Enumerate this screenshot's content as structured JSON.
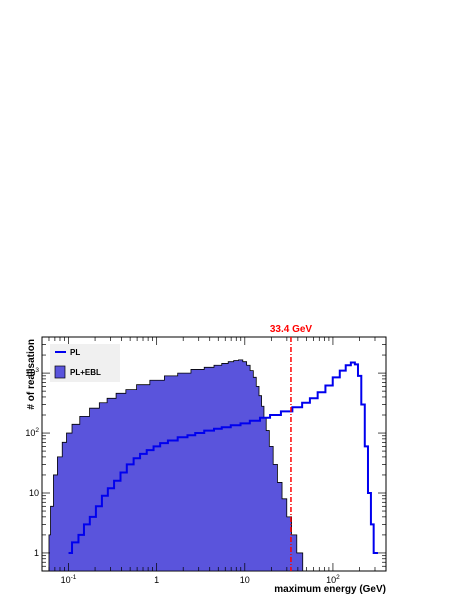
{
  "chart_data": {
    "type": "histogram",
    "xlabel": "maximum energy (GeV)",
    "ylabel": "# of realisation",
    "xscale": "log",
    "yscale": "log",
    "xlim": [
      0.05,
      400
    ],
    "ylim": [
      0.5,
      4000
    ],
    "x_tick_labels": [
      {
        "value": 0.1,
        "base": "10",
        "exp": "-1"
      },
      {
        "value": 1,
        "text": "1"
      },
      {
        "value": 10,
        "text": "10"
      },
      {
        "value": 100,
        "base": "10",
        "exp": "2"
      }
    ],
    "y_tick_labels": [
      {
        "value": 1,
        "text": "1"
      },
      {
        "value": 10,
        "text": "10"
      },
      {
        "value": 100,
        "base": "10",
        "exp": "2"
      },
      {
        "value": 1000,
        "base": "10",
        "exp": "3"
      }
    ],
    "legend": {
      "placement": "top-left",
      "entries": [
        "PL",
        "PL+EBL"
      ]
    },
    "annotation": {
      "text": "33.4 GeV",
      "x": 33.4,
      "color": "#ff0000"
    },
    "colors": {
      "pl": "#0000ee",
      "pl_ebl_fill": "#5a54dc",
      "pl_ebl_line": "#000000",
      "annotation": "#ff0000"
    },
    "series": [
      {
        "name": "PL",
        "points": [
          [
            0.1,
            1
          ],
          [
            0.12,
            1.5
          ],
          [
            0.14,
            2
          ],
          [
            0.16,
            3
          ],
          [
            0.19,
            4
          ],
          [
            0.22,
            6
          ],
          [
            0.26,
            9
          ],
          [
            0.3,
            12
          ],
          [
            0.36,
            16
          ],
          [
            0.42,
            22
          ],
          [
            0.5,
            30
          ],
          [
            0.6,
            38
          ],
          [
            0.7,
            45
          ],
          [
            0.85,
            52
          ],
          [
            1,
            60
          ],
          [
            1.2,
            68
          ],
          [
            1.5,
            75
          ],
          [
            2,
            85
          ],
          [
            2.5,
            92
          ],
          [
            3,
            100
          ],
          [
            4,
            110
          ],
          [
            5,
            118
          ],
          [
            6,
            125
          ],
          [
            8,
            135
          ],
          [
            10,
            145
          ],
          [
            13,
            160
          ],
          [
            17,
            180
          ],
          [
            22,
            200
          ],
          [
            30,
            230
          ],
          [
            40,
            270
          ],
          [
            50,
            320
          ],
          [
            60,
            380
          ],
          [
            75,
            480
          ],
          [
            90,
            620
          ],
          [
            110,
            850
          ],
          [
            130,
            1100
          ],
          [
            150,
            1350
          ],
          [
            170,
            1500
          ],
          [
            185,
            1400
          ],
          [
            200,
            900
          ],
          [
            220,
            300
          ],
          [
            240,
            60
          ],
          [
            260,
            10
          ],
          [
            280,
            3
          ],
          [
            300,
            1
          ]
        ]
      },
      {
        "name": "PL+EBL",
        "points": [
          [
            0.06,
            2
          ],
          [
            0.065,
            6
          ],
          [
            0.07,
            20
          ],
          [
            0.08,
            40
          ],
          [
            0.09,
            70
          ],
          [
            0.1,
            100
          ],
          [
            0.12,
            140
          ],
          [
            0.15,
            190
          ],
          [
            0.2,
            260
          ],
          [
            0.25,
            320
          ],
          [
            0.3,
            380
          ],
          [
            0.4,
            460
          ],
          [
            0.5,
            530
          ],
          [
            0.7,
            640
          ],
          [
            1,
            760
          ],
          [
            1.5,
            900
          ],
          [
            2,
            1000
          ],
          [
            3,
            1150
          ],
          [
            4,
            1250
          ],
          [
            5,
            1350
          ],
          [
            6,
            1450
          ],
          [
            7,
            1550
          ],
          [
            8,
            1620
          ],
          [
            9,
            1660
          ],
          [
            10,
            1550
          ],
          [
            11,
            1350
          ],
          [
            12,
            1100
          ],
          [
            13,
            850
          ],
          [
            14,
            600
          ],
          [
            15,
            420
          ],
          [
            16,
            280
          ],
          [
            17,
            180
          ],
          [
            18,
            110
          ],
          [
            20,
            60
          ],
          [
            22,
            30
          ],
          [
            25,
            15
          ],
          [
            28,
            8
          ],
          [
            32,
            4
          ],
          [
            36,
            2
          ],
          [
            42,
            1
          ]
        ]
      }
    ]
  }
}
